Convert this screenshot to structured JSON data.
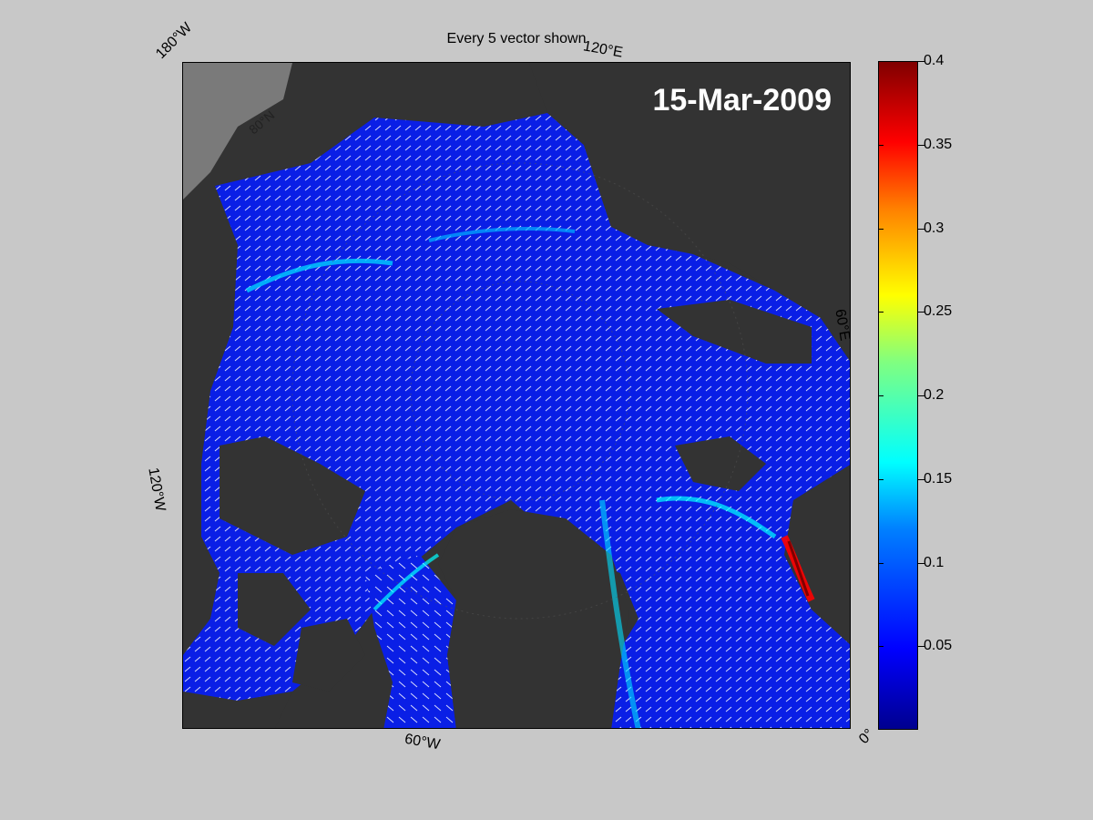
{
  "figure": {
    "title": "Every 5 vector shown",
    "date": "15-Mar-2009"
  },
  "map": {
    "edge_labels": {
      "top_left": "180°W",
      "top_right": "120°E",
      "right": "60°E",
      "left": "120°W",
      "bottom": "60°W",
      "bottom_right": "0°",
      "lat": "80°N"
    },
    "colors": {
      "land": "#333333",
      "other_land": "#7a7a7a",
      "ice_background": "#0a1fe6",
      "vector": "#ffffff"
    }
  },
  "colorbar": {
    "min": 0,
    "max": 0.4,
    "colormap": "jet",
    "ticks": [
      "0.4",
      "0.35",
      "0.3",
      "0.25",
      "0.2",
      "0.15",
      "0.1",
      "0.05"
    ],
    "tick_values": [
      0.4,
      0.35,
      0.3,
      0.25,
      0.2,
      0.15,
      0.1,
      0.05
    ]
  }
}
